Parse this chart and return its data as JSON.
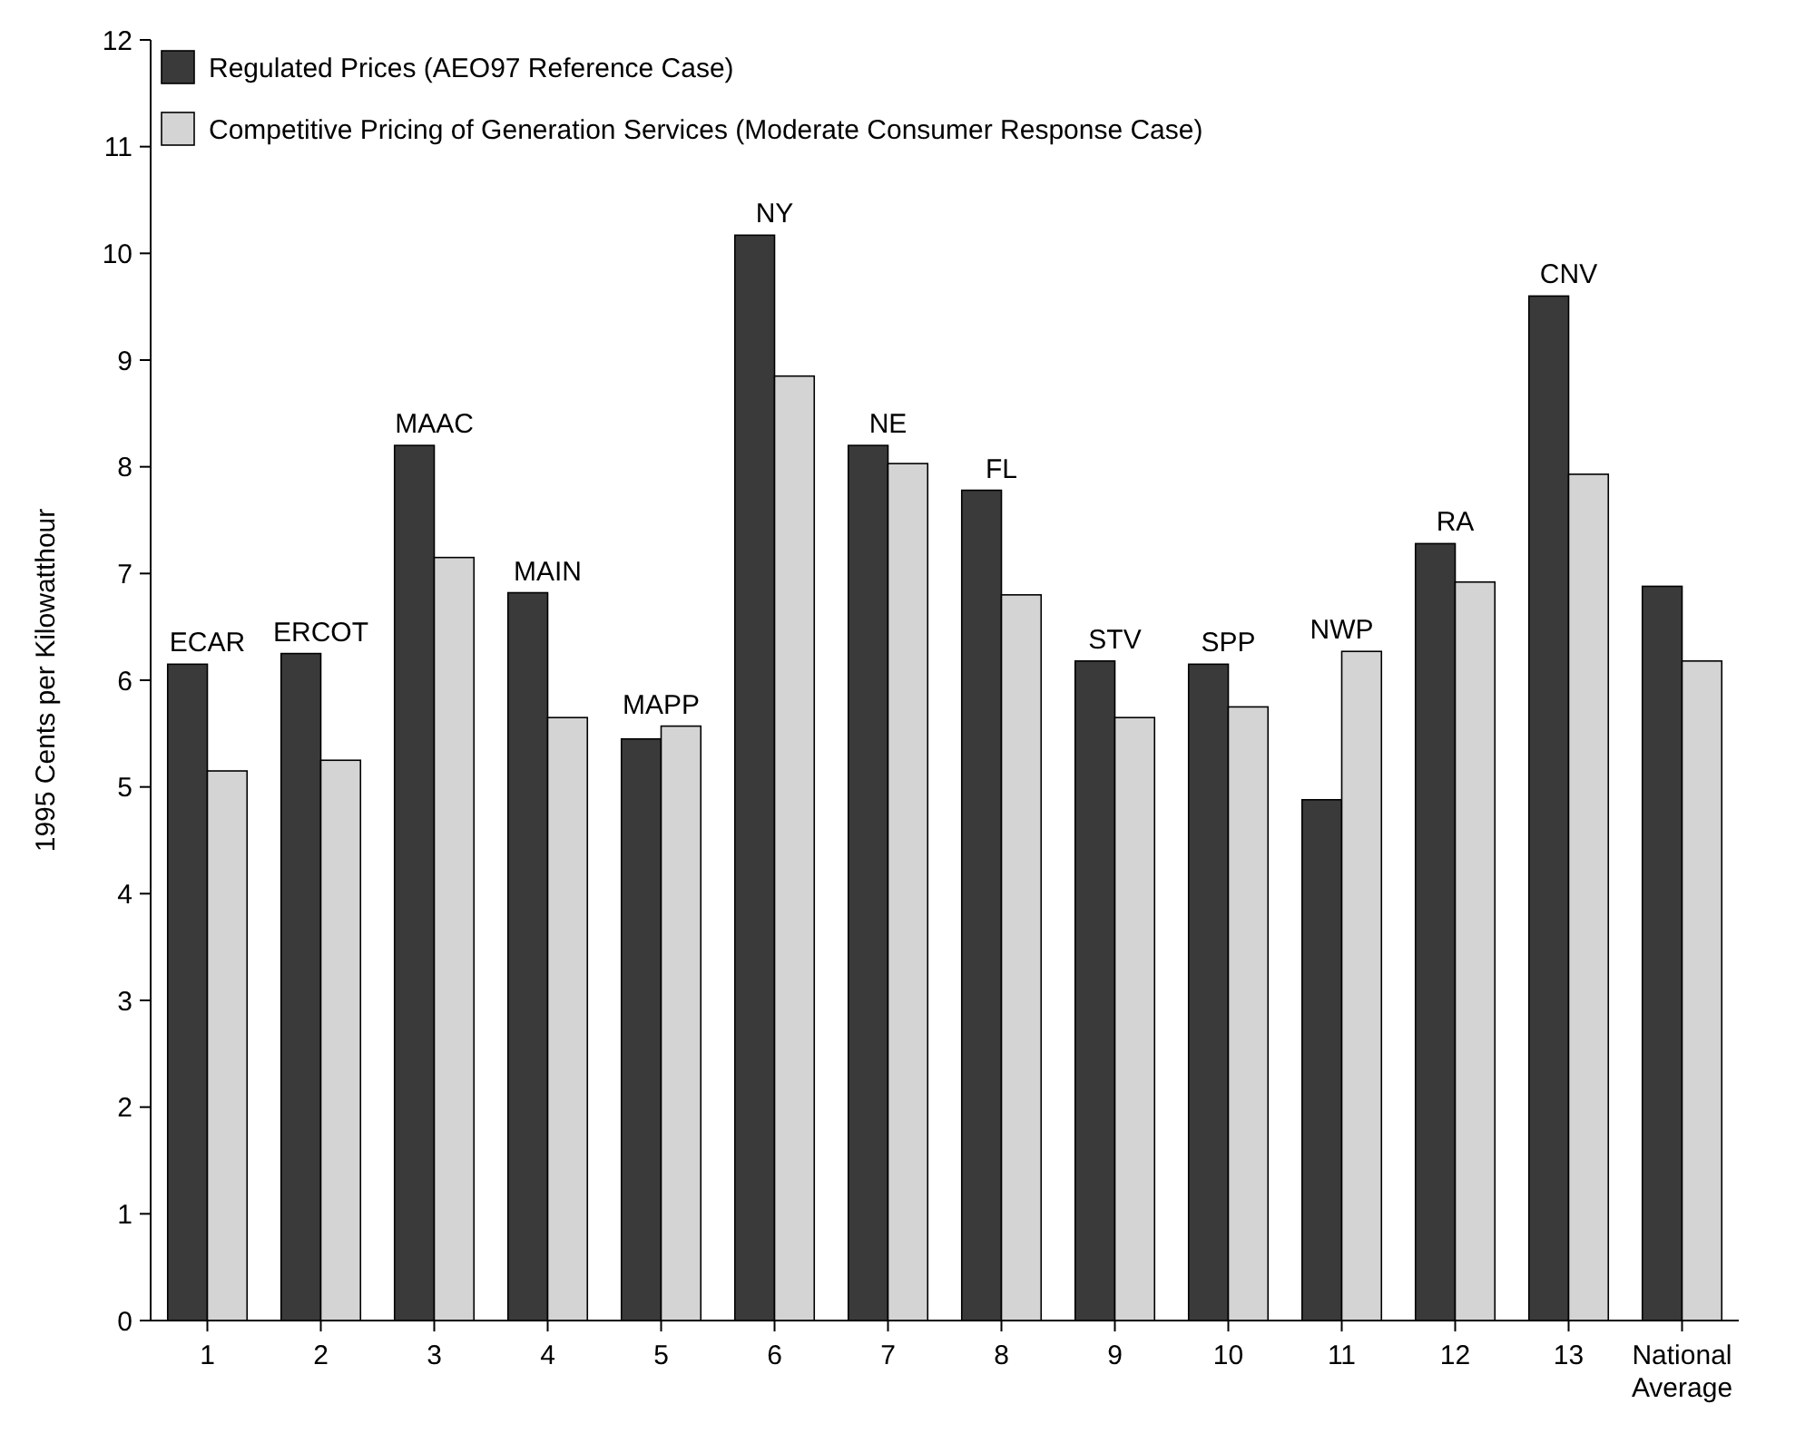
{
  "chart_data": {
    "type": "bar",
    "ylabel": "1995 Cents per Kilowatthour",
    "categories": [
      "1",
      "2",
      "3",
      "4",
      "5",
      "6",
      "7",
      "8",
      "9",
      "10",
      "11",
      "12",
      "13",
      "National Average"
    ],
    "series": [
      {
        "name": "Regulated Prices (AEO97 Reference Case)",
        "color": "#3a3a3a",
        "values": [
          6.15,
          6.25,
          8.2,
          6.82,
          5.45,
          10.17,
          8.2,
          7.78,
          6.18,
          6.15,
          4.88,
          7.28,
          9.6,
          6.88
        ]
      },
      {
        "name": "Competitive Pricing of Generation Services (Moderate Consumer Response Case)",
        "color": "#d4d4d4",
        "values": [
          5.15,
          5.25,
          7.15,
          5.65,
          5.57,
          8.85,
          8.03,
          6.8,
          5.65,
          5.75,
          6.27,
          6.92,
          7.93,
          6.18
        ]
      }
    ],
    "annotations": [
      {
        "text": "ECAR",
        "x": "1",
        "y": 6.15
      },
      {
        "text": "ERCOT",
        "x": "2",
        "y": 6.25
      },
      {
        "text": "MAAC",
        "x": "3",
        "y": 8.2
      },
      {
        "text": "MAIN",
        "x": "4",
        "y": 6.82
      },
      {
        "text": "MAPP",
        "x": "5",
        "y": 5.57
      },
      {
        "text": "NY",
        "x": "6",
        "y": 10.17
      },
      {
        "text": "NE",
        "x": "7",
        "y": 8.2
      },
      {
        "text": "FL",
        "x": "8",
        "y": 7.78
      },
      {
        "text": "STV",
        "x": "9",
        "y": 6.18
      },
      {
        "text": "SPP",
        "x": "10",
        "y": 6.15
      },
      {
        "text": "NWP",
        "x": "11",
        "y": 6.27
      },
      {
        "text": "RA",
        "x": "12",
        "y": 7.28
      },
      {
        "text": "CNV",
        "x": "13",
        "y": 9.6
      }
    ],
    "ylim": [
      0,
      12
    ],
    "yticks": [
      0,
      1,
      2,
      3,
      4,
      5,
      6,
      7,
      8,
      9,
      10,
      11,
      12
    ],
    "grid": false,
    "legend": "top left"
  }
}
